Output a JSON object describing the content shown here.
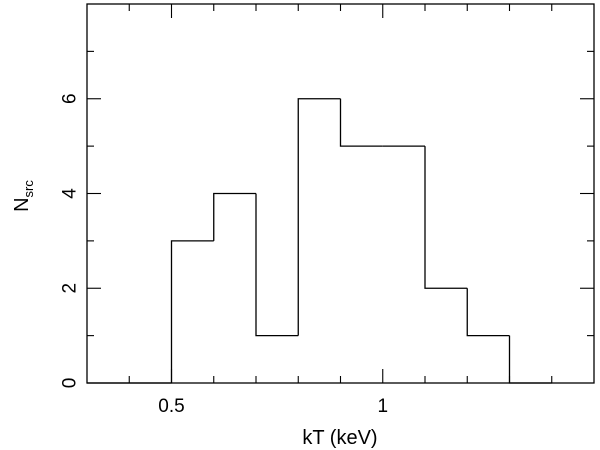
{
  "chart_data": {
    "type": "bar",
    "style": "step-histogram",
    "xlabel": "kT (keV)",
    "ylabel": {
      "main": "N",
      "subscript": "src"
    },
    "xlim": [
      0.3,
      1.5
    ],
    "ylim": [
      0,
      8
    ],
    "x_major_ticks": [
      0.5,
      1
    ],
    "x_minor_step": 0.1,
    "y_major_ticks": [
      0,
      2,
      4,
      6
    ],
    "y_minor_step": 1,
    "x_tick_labels": [
      "0.5",
      "1"
    ],
    "y_tick_labels": [
      "0",
      "2",
      "4",
      "6"
    ],
    "bin_edges": [
      0.3,
      0.4,
      0.5,
      0.6,
      0.7,
      0.8,
      0.9,
      1.0,
      1.1,
      1.2,
      1.3,
      1.4
    ],
    "values": [
      0,
      0,
      3,
      4,
      1,
      6,
      5,
      5,
      2,
      1,
      0
    ],
    "grid": false,
    "legend": "none"
  }
}
